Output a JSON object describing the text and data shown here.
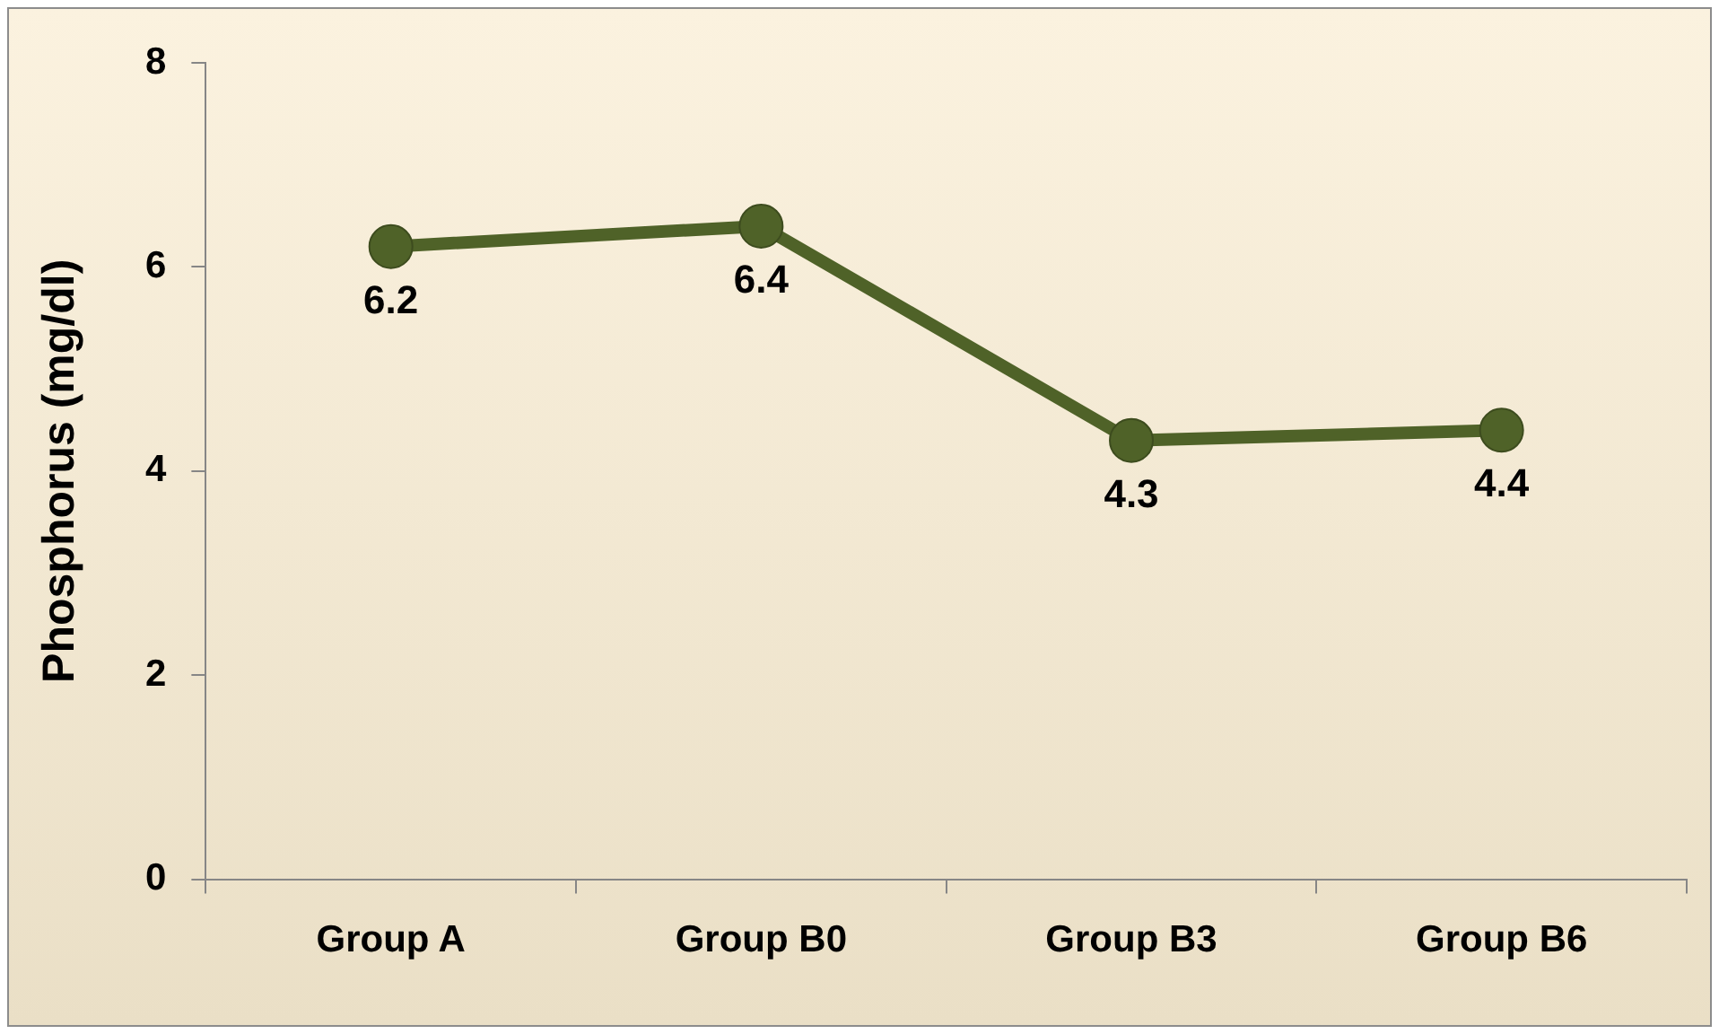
{
  "chart_data": {
    "type": "line",
    "ylabel": "Phosphorus (mg/dl)",
    "categories": [
      "Group A",
      "Group B0",
      "Group B3",
      "Group B6"
    ],
    "series": [
      {
        "color": "#4f6228",
        "values": [
          6.2,
          6.4,
          4.3,
          4.4
        ]
      }
    ],
    "ylim": [
      0,
      8
    ],
    "yticks": [
      0,
      2,
      4,
      6,
      8
    ],
    "grid": false,
    "legend": false,
    "marker": "circle",
    "line_style": "solid",
    "data_labels": true
  }
}
